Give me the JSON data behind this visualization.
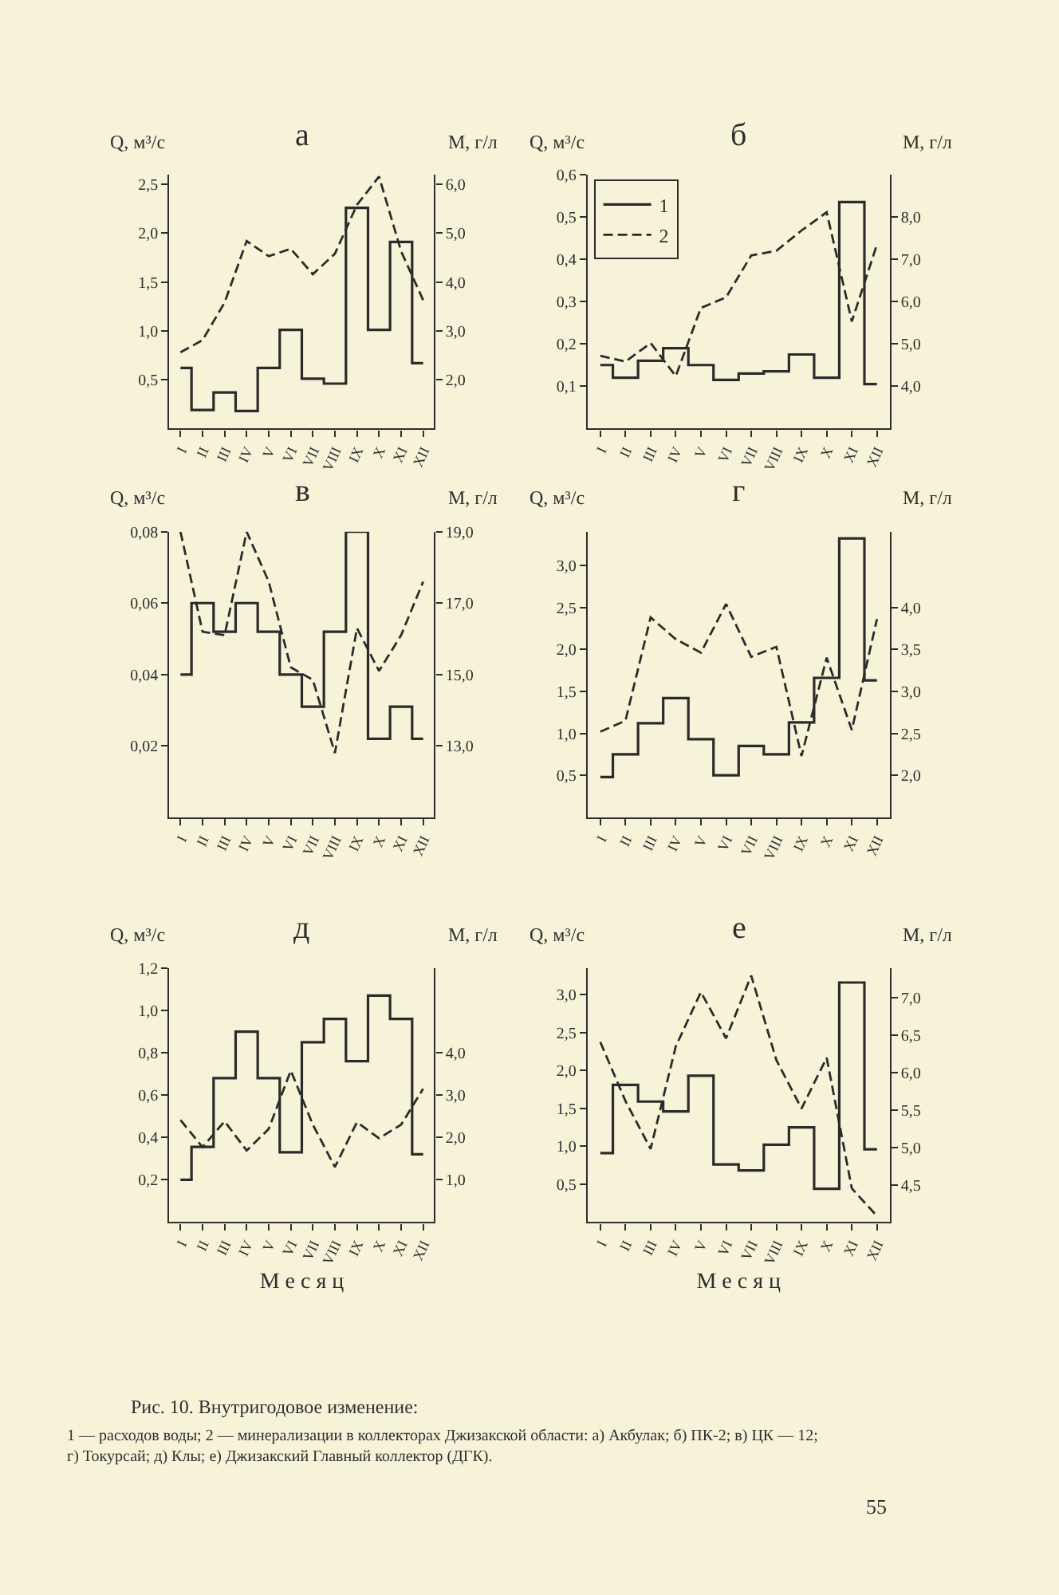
{
  "chart_data": [
    {
      "type": "step",
      "title": "а",
      "ylabel": "Q, м³/с",
      "y2label": "М, г/л",
      "categories": [
        "I",
        "II",
        "III",
        "IV",
        "V",
        "VI",
        "VII",
        "VIII",
        "IX",
        "X",
        "XI",
        "XII"
      ],
      "series": [
        {
          "color": "#2b2b2b",
          "values": [
            0.62,
            0.19,
            0.37,
            0.18,
            0.62,
            1.01,
            0.51,
            0.46,
            2.26,
            1.01,
            1.91,
            0.67
          ]
        },
        {
          "type": "line",
          "axis": "y2",
          "line_style": "dashed",
          "color": "#2b2b2b",
          "values": [
            2.56,
            2.81,
            3.58,
            4.84,
            4.53,
            4.68,
            4.16,
            4.58,
            5.58,
            6.16,
            4.63,
            3.63
          ]
        }
      ],
      "ylim": [
        0,
        2.6
      ],
      "yticks": [
        {
          "value": 0.5,
          "label": "0,5"
        },
        {
          "value": 1.0,
          "label": "1,0"
        },
        {
          "value": 1.5,
          "label": "1,5"
        },
        {
          "value": 2.0,
          "label": "2,0"
        },
        {
          "value": 2.5,
          "label": "2,5"
        }
      ],
      "y2lim": [
        1,
        6.2
      ],
      "y2ticks": [
        {
          "value": 2,
          "label": "2,0"
        },
        {
          "value": 3,
          "label": "3,0"
        },
        {
          "value": 4,
          "label": "4,0"
        },
        {
          "value": 5,
          "label": "5,0"
        },
        {
          "value": 6,
          "label": "6,0"
        }
      ]
    },
    {
      "type": "step",
      "title": "б",
      "ylabel": "Q, м³/с",
      "y2label": "М, г/л",
      "legend": "top left",
      "categories": [
        "I",
        "II",
        "III",
        "IV",
        "V",
        "VI",
        "VII",
        "VIII",
        "IX",
        "X",
        "XI",
        "XII"
      ],
      "series": [
        {
          "name": "1",
          "color": "#2b2b2b",
          "values": [
            0.15,
            0.12,
            0.16,
            0.19,
            0.15,
            0.115,
            0.13,
            0.135,
            0.175,
            0.12,
            0.535,
            0.105
          ]
        },
        {
          "name": "2",
          "type": "line",
          "axis": "y2",
          "line_style": "dashed",
          "color": "#2b2b2b",
          "values": [
            4.72,
            4.58,
            5.02,
            4.24,
            5.85,
            6.1,
            7.09,
            7.2,
            7.68,
            8.11,
            5.53,
            7.35
          ]
        }
      ],
      "ylim": [
        0,
        0.6
      ],
      "yticks": [
        {
          "value": 0.1,
          "label": "0,1"
        },
        {
          "value": 0.2,
          "label": "0,2"
        },
        {
          "value": 0.3,
          "label": "0,3"
        },
        {
          "value": 0.4,
          "label": "0,4"
        },
        {
          "value": 0.5,
          "label": "0,5"
        },
        {
          "value": 0.6,
          "label": "0,6"
        }
      ],
      "y2lim": [
        3,
        9
      ],
      "y2ticks": [
        {
          "value": 4,
          "label": "4,0"
        },
        {
          "value": 5,
          "label": "5,0"
        },
        {
          "value": 6,
          "label": "6,0"
        },
        {
          "value": 7,
          "label": "7,0"
        },
        {
          "value": 8,
          "label": "8,0"
        }
      ]
    },
    {
      "type": "step",
      "title": "в",
      "ylabel": "Q, м³/с",
      "y2label": "М, г/л",
      "categories": [
        "I",
        "II",
        "III",
        "IV",
        "V",
        "VI",
        "VII",
        "VIII",
        "IX",
        "X",
        "XI",
        "XII"
      ],
      "series": [
        {
          "color": "#2b2b2b",
          "values": [
            0.04,
            0.06,
            0.052,
            0.06,
            0.052,
            0.04,
            0.031,
            0.052,
            0.08,
            0.022,
            0.031,
            0.022
          ]
        },
        {
          "type": "line",
          "axis": "y2",
          "line_style": "dashed",
          "color": "#2b2b2b",
          "values": [
            19.0,
            16.2,
            16.1,
            19.0,
            17.6,
            15.2,
            14.85,
            12.8,
            16.3,
            15.1,
            16.1,
            17.6
          ]
        }
      ],
      "ylim": [
        0,
        0.08
      ],
      "yticks": [
        {
          "value": 0.02,
          "label": "0,02"
        },
        {
          "value": 0.04,
          "label": "0,04"
        },
        {
          "value": 0.06,
          "label": "0,06"
        },
        {
          "value": 0.08,
          "label": "0,08"
        }
      ],
      "y2lim": [
        11,
        19
      ],
      "y2ticks": [
        {
          "value": 13,
          "label": "13,0"
        },
        {
          "value": 15,
          "label": "15,0"
        },
        {
          "value": 17,
          "label": "17,0"
        },
        {
          "value": 19,
          "label": "19,0"
        }
      ]
    },
    {
      "type": "step",
      "title": "г",
      "ylabel": "Q, м³/с",
      "y2label": "М, г/л",
      "categories": [
        "I",
        "II",
        "III",
        "IV",
        "V",
        "VI",
        "VII",
        "VIII",
        "IX",
        "X",
        "XI",
        "XII"
      ],
      "series": [
        {
          "color": "#2b2b2b",
          "values": [
            0.48,
            0.75,
            1.12,
            1.42,
            0.93,
            0.5,
            0.85,
            0.75,
            1.13,
            1.66,
            3.32,
            1.63
          ]
        },
        {
          "type": "line",
          "axis": "y2",
          "line_style": "dashed",
          "color": "#2b2b2b",
          "values": [
            2.52,
            2.65,
            3.88,
            3.62,
            3.46,
            4.04,
            3.41,
            3.53,
            2.23,
            3.4,
            2.54,
            3.86
          ]
        }
      ],
      "ylim": [
        0,
        3.4
      ],
      "yticks": [
        {
          "value": 0.5,
          "label": "0,5"
        },
        {
          "value": 1.0,
          "label": "1,0"
        },
        {
          "value": 1.5,
          "label": "1,5"
        },
        {
          "value": 2.0,
          "label": "2,0"
        },
        {
          "value": 2.5,
          "label": "2,5"
        },
        {
          "value": 3.0,
          "label": "3,0"
        }
      ],
      "y2lim": [
        1.5,
        4.9
      ],
      "y2ticks": [
        {
          "value": 2.0,
          "label": "2,0"
        },
        {
          "value": 2.5,
          "label": "2,5"
        },
        {
          "value": 3.0,
          "label": "3,0"
        },
        {
          "value": 3.5,
          "label": "3,5"
        },
        {
          "value": 4.0,
          "label": "4,0"
        }
      ]
    },
    {
      "type": "step",
      "title": "д",
      "ylabel": "Q, м³/с",
      "y2label": "М, г/л",
      "xlabel": "М е с я ц",
      "categories": [
        "I",
        "II",
        "III",
        "IV",
        "V",
        "VI",
        "VII",
        "VIII",
        "IX",
        "X",
        "XI",
        "XII"
      ],
      "series": [
        {
          "color": "#2b2b2b",
          "values": [
            0.2,
            0.355,
            0.68,
            0.9,
            0.68,
            0.33,
            0.85,
            0.96,
            0.76,
            1.07,
            0.96,
            0.32
          ]
        },
        {
          "type": "line",
          "axis": "y2",
          "line_style": "dashed",
          "color": "#2b2b2b",
          "values": [
            2.41,
            1.77,
            2.38,
            1.69,
            2.2,
            3.58,
            2.3,
            1.3,
            2.36,
            1.98,
            2.3,
            3.15
          ]
        }
      ],
      "ylim": [
        0,
        1.2
      ],
      "yticks": [
        {
          "value": 0.2,
          "label": "0,2"
        },
        {
          "value": 0.4,
          "label": "0,4"
        },
        {
          "value": 0.6,
          "label": "0,6"
        },
        {
          "value": 0.8,
          "label": "0,8"
        },
        {
          "value": 1.0,
          "label": "1,0"
        },
        {
          "value": 1.2,
          "label": "1,2"
        }
      ],
      "y2lim": [
        0,
        6
      ],
      "y2ticks": [
        {
          "value": 1,
          "label": "1,0"
        },
        {
          "value": 2,
          "label": "2,0"
        },
        {
          "value": 3,
          "label": "3,0"
        },
        {
          "value": 4,
          "label": "4,0"
        }
      ]
    },
    {
      "type": "step",
      "title": "е",
      "ylabel": "Q, м³/с",
      "y2label": "М, г/л",
      "xlabel": "М е с я ц",
      "categories": [
        "I",
        "II",
        "III",
        "IV",
        "V",
        "VI",
        "VII",
        "VIII",
        "IX",
        "X",
        "XI",
        "XII"
      ],
      "series": [
        {
          "color": "#2b2b2b",
          "values": [
            0.91,
            1.81,
            1.59,
            1.46,
            1.93,
            0.76,
            0.68,
            1.02,
            1.25,
            0.44,
            3.16,
            0.96
          ]
        },
        {
          "type": "line",
          "axis": "y2",
          "line_style": "dashed",
          "color": "#2b2b2b",
          "values": [
            6.41,
            5.62,
            4.98,
            6.35,
            7.08,
            6.46,
            7.3,
            6.17,
            5.52,
            6.2,
            4.45,
            4.08
          ]
        }
      ],
      "ylim": [
        0,
        3.35
      ],
      "yticks": [
        {
          "value": 0.5,
          "label": "0,5"
        },
        {
          "value": 1.0,
          "label": "1,0"
        },
        {
          "value": 1.5,
          "label": "1,5"
        },
        {
          "value": 2.0,
          "label": "2,0"
        },
        {
          "value": 2.5,
          "label": "2,5"
        },
        {
          "value": 3.0,
          "label": "3,0"
        }
      ],
      "y2lim": [
        4.0,
        7.4
      ],
      "y2ticks": [
        {
          "value": 4.5,
          "label": "4,5"
        },
        {
          "value": 5.0,
          "label": "5,0"
        },
        {
          "value": 5.5,
          "label": "5,5"
        },
        {
          "value": 6.0,
          "label": "6,0"
        },
        {
          "value": 6.5,
          "label": "6,5"
        },
        {
          "value": 7.0,
          "label": "7,0"
        }
      ],
      "annotations": [
        "Рис. 10. Внутригодовое изменение:",
        "1 — расходов воды; 2 — минерализации в коллекторах Джизакской области: а) Акбулак; б) ПК-2; в) ЦК — 12; г) Токурсай; д) Клы; е) Джизакский Главный коллектор (ДГК).",
        "55"
      ]
    }
  ]
}
